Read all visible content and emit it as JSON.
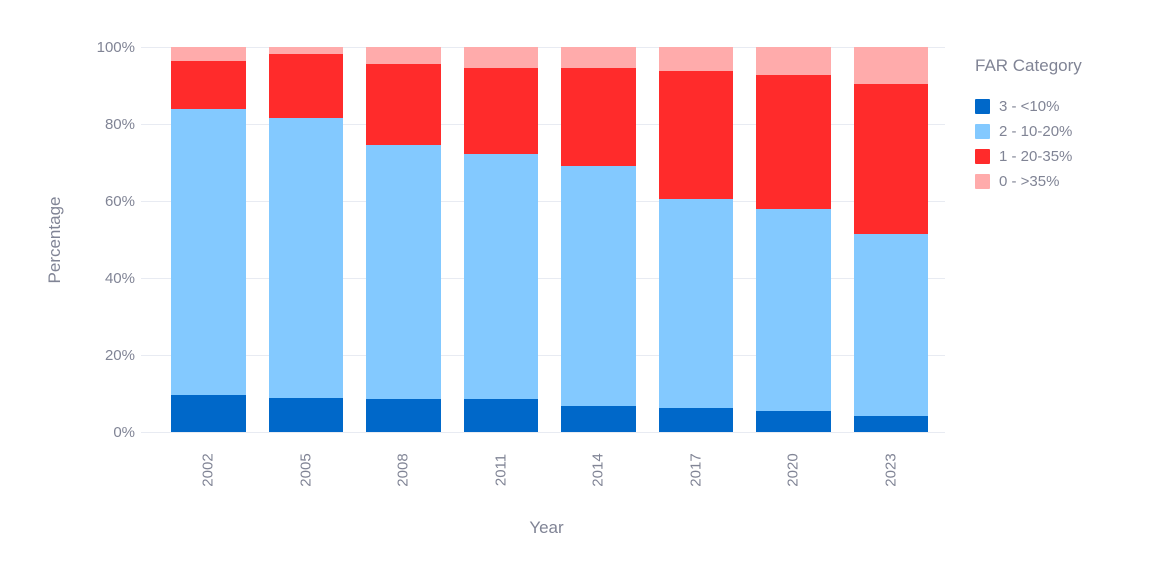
{
  "chart_data": {
    "type": "bar",
    "stacked": true,
    "categories": [
      "2002",
      "2005",
      "2008",
      "2011",
      "2014",
      "2017",
      "2020",
      "2023"
    ],
    "series": [
      {
        "name": "3 - <10%",
        "color": "#0068C9",
        "values": [
          9.7,
          8.9,
          8.5,
          8.6,
          6.8,
          6.3,
          5.5,
          4.2
        ]
      },
      {
        "name": "2 - 10-20%",
        "color": "#83C9FF",
        "values": [
          74.2,
          72.7,
          66.1,
          63.5,
          62.4,
          54.3,
          52.4,
          47.2
        ]
      },
      {
        "name": "1 - 20-35%",
        "color": "#FF2B2B",
        "values": [
          12.4,
          16.5,
          21.0,
          22.5,
          25.4,
          33.1,
          34.9,
          39.0
        ]
      },
      {
        "name": "0 - >35%",
        "color": "#FFABAB",
        "values": [
          3.7,
          1.9,
          4.4,
          5.4,
          5.4,
          6.3,
          7.2,
          9.6
        ]
      }
    ],
    "xlabel": "Year",
    "ylabel": "Percentage",
    "ylim": [
      0,
      100
    ],
    "yticks": [
      0,
      20,
      40,
      60,
      80,
      100
    ],
    "ytick_suffix": "%",
    "x_tick_angle": -90,
    "grid": true,
    "legend_title": "FAR Category",
    "legend_position": "right"
  },
  "style": {
    "background": "#ffffff",
    "grid_color": "#e8ebf2",
    "text_color": "#808495"
  }
}
